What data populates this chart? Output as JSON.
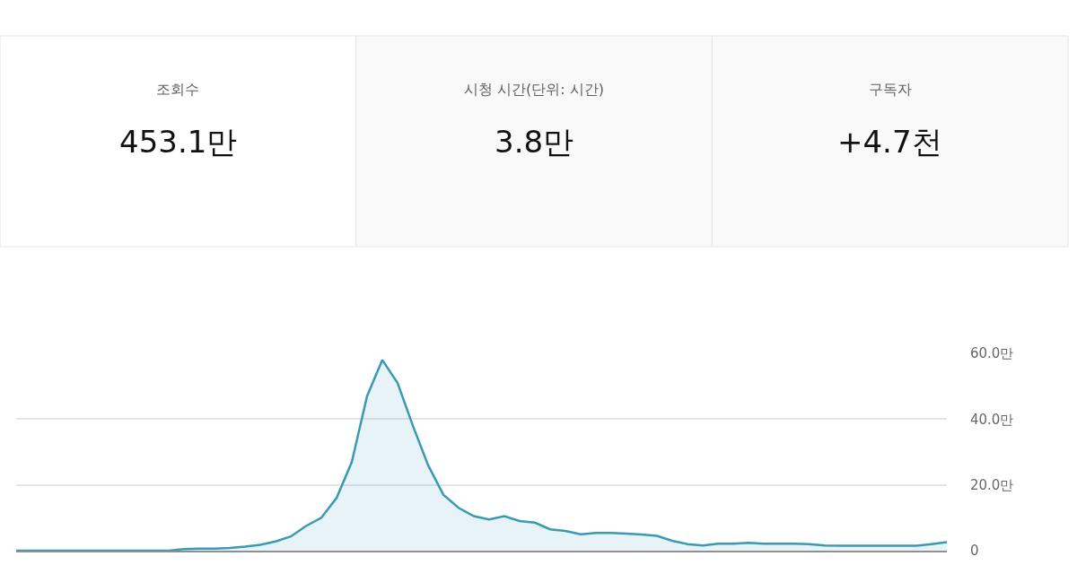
{
  "chart_data": [
    {
      "type": "other",
      "annotations": [
        "조회수",
        "453.1만",
        "시청 시간(단위: 시간)",
        "3.8만",
        "구독자",
        "+4.7천"
      ]
    },
    {
      "type": "area",
      "color": "#3a9ab4",
      "categories": [
        null,
        null,
        null,
        null,
        null,
        null,
        null,
        null,
        null,
        null,
        null,
        null,
        null,
        null,
        null,
        null,
        null,
        null,
        null,
        null,
        null,
        null,
        null,
        null,
        null,
        null,
        null,
        null,
        null,
        null,
        null,
        null,
        null,
        null,
        null,
        null,
        null,
        null,
        null,
        null,
        null,
        null,
        null,
        null,
        null,
        null,
        null,
        null,
        null,
        null,
        null,
        null,
        null,
        null,
        null,
        null,
        null,
        null,
        null,
        null,
        null,
        null
      ],
      "values": [
        0,
        0,
        0,
        0,
        0,
        0,
        0,
        0,
        0,
        0,
        0,
        0.5,
        0.6,
        0.6,
        0.8,
        1.2,
        1.8,
        2.8,
        4.3,
        7.5,
        10,
        16,
        27,
        47,
        58,
        51,
        38,
        26,
        17,
        13,
        10.5,
        9.5,
        10.5,
        9,
        8.5,
        6.5,
        6,
        5,
        5.4,
        5.4,
        5.2,
        4.9,
        4.5,
        3,
        2,
        1.6,
        2.1,
        2.1,
        2.4,
        2.1,
        2.1,
        2.1,
        2,
        1.6,
        1.5,
        1.5,
        1.5,
        1.5,
        1.5,
        1.5,
        2,
        2.6
      ],
      "ylim": [
        0,
        60
      ],
      "yticks": [
        {
          "value": 0,
          "label": "0"
        },
        {
          "value": 20,
          "label": "20.0만"
        },
        {
          "value": 40,
          "label": "40.0만"
        },
        {
          "value": 60,
          "label": "60.0만"
        }
      ],
      "grid": "y",
      "tick_labels": "y"
    }
  ]
}
